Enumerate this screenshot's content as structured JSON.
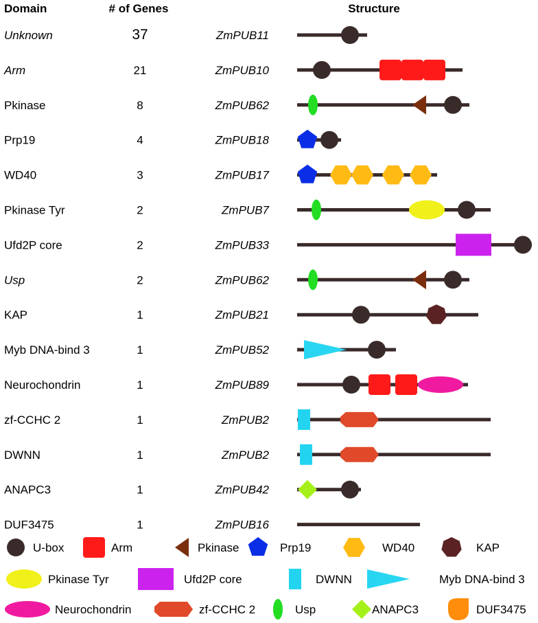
{
  "headers": {
    "domain": "Domain",
    "genes": "# of Genes",
    "structure": "Structure"
  },
  "rows": [
    {
      "domain": "Unknown",
      "italic": true,
      "count": "37",
      "gene": "ZmPUB11",
      "line": [
        433,
        535
      ],
      "shapes": [
        {
          "type": "ubox",
          "x": 510
        }
      ]
    },
    {
      "domain": "Arm",
      "italic": true,
      "count": "21",
      "gene": "ZmPUB10",
      "line": [
        433,
        674
      ],
      "shapes": [
        {
          "type": "ubox",
          "x": 469
        },
        {
          "type": "arm",
          "x": 569
        },
        {
          "type": "arm",
          "x": 601
        },
        {
          "type": "arm",
          "x": 633
        }
      ]
    },
    {
      "domain": "Pkinase",
      "italic": false,
      "count": "8",
      "gene": "ZmPUB62",
      "line": [
        433,
        684
      ],
      "shapes": [
        {
          "type": "usp",
          "x": 456
        },
        {
          "type": "pkinase",
          "x": 612
        },
        {
          "type": "ubox",
          "x": 660
        }
      ]
    },
    {
      "domain": "Prp19",
      "italic": false,
      "count": "4",
      "gene": "ZmPUB18",
      "line": [
        433,
        497
      ],
      "shapes": [
        {
          "type": "prp19",
          "x": 448
        },
        {
          "type": "ubox",
          "x": 480
        }
      ]
    },
    {
      "domain": "WD40",
      "italic": false,
      "count": "3",
      "gene": "ZmPUB17",
      "line": [
        433,
        637
      ],
      "shapes": [
        {
          "type": "prp19",
          "x": 448
        },
        {
          "type": "wd40",
          "x": 497
        },
        {
          "type": "wd40",
          "x": 528
        },
        {
          "type": "wd40",
          "x": 573
        },
        {
          "type": "wd40",
          "x": 613
        }
      ]
    },
    {
      "domain": "Pkinase Tyr",
      "italic": false,
      "count": "2",
      "gene": "ZmPUB7",
      "line": [
        433,
        715
      ],
      "shapes": [
        {
          "type": "usp",
          "x": 461
        },
        {
          "type": "pkinasetyr",
          "x": 622
        },
        {
          "type": "ubox",
          "x": 680
        }
      ]
    },
    {
      "domain": "Ufd2P core",
      "italic": false,
      "count": "2",
      "gene": "ZmPUB33",
      "line": [
        433,
        775
      ],
      "shapes": [
        {
          "type": "ufd2p",
          "x": 690
        },
        {
          "type": "ubox",
          "x": 762
        }
      ]
    },
    {
      "domain": "Usp",
      "italic": true,
      "count": "2",
      "gene": "ZmPUB62",
      "line": [
        433,
        684
      ],
      "shapes": [
        {
          "type": "usp",
          "x": 456
        },
        {
          "type": "pkinase",
          "x": 612
        },
        {
          "type": "ubox",
          "x": 660
        }
      ]
    },
    {
      "domain": "KAP",
      "italic": false,
      "count": "1",
      "gene": "ZmPUB21",
      "line": [
        433,
        697
      ],
      "shapes": [
        {
          "type": "ubox",
          "x": 526
        },
        {
          "type": "kap",
          "x": 636
        }
      ]
    },
    {
      "domain": "Myb DNA-bind 3",
      "italic": false,
      "count": "1",
      "gene": "ZmPUB52",
      "line": [
        433,
        577
      ],
      "shapes": [
        {
          "type": "myb",
          "x": 443
        },
        {
          "type": "ubox",
          "x": 549
        }
      ]
    },
    {
      "domain": "Neurochondrin",
      "italic": false,
      "count": "1",
      "gene": "ZmPUB89",
      "line": [
        433,
        682
      ],
      "shapes": [
        {
          "type": "ubox",
          "x": 512
        },
        {
          "type": "arm",
          "x": 553
        },
        {
          "type": "arm",
          "x": 592
        },
        {
          "type": "neuro",
          "x": 642
        }
      ]
    },
    {
      "domain": "zf-CCHC 2",
      "italic": false,
      "count": "1",
      "gene": "ZmPUB2",
      "line": [
        433,
        715
      ],
      "shapes": [
        {
          "type": "dwnn",
          "x": 443
        },
        {
          "type": "zfcchc",
          "x": 524
        }
      ]
    },
    {
      "domain": "DWNN",
      "italic": false,
      "count": "1",
      "gene": "ZmPUB2",
      "line": [
        433,
        715
      ],
      "shapes": [
        {
          "type": "dwnn",
          "x": 446
        },
        {
          "type": "zfcchc",
          "x": 524
        }
      ]
    },
    {
      "domain": "ANAPC3",
      "italic": false,
      "count": "1",
      "gene": "ZmPUB42",
      "line": [
        433,
        526
      ],
      "shapes": [
        {
          "type": "anapc3",
          "x": 448
        },
        {
          "type": "ubox",
          "x": 510
        }
      ]
    },
    {
      "domain": "DUF3475",
      "italic": false,
      "count": "1",
      "gene": "ZmPUB16",
      "line": [
        433,
        612
      ],
      "shapes": []
    }
  ],
  "legend": [
    {
      "type": "ubox",
      "label": "U-box"
    },
    {
      "type": "arm",
      "label": "Arm"
    },
    {
      "type": "pkinase",
      "label": "Pkinase"
    },
    {
      "type": "prp19",
      "label": "Prp19"
    },
    {
      "type": "wd40",
      "label": "WD40"
    },
    {
      "type": "kap",
      "label": "KAP"
    },
    {
      "type": "pkinasetyr",
      "label": "Pkinase Tyr"
    },
    {
      "type": "ufd2p",
      "label": "Ufd2P core"
    },
    {
      "type": "dwnn",
      "label": "DWNN"
    },
    {
      "type": "myb",
      "label": "Myb DNA-bind 3"
    },
    {
      "type": "neuro",
      "label": "Neurochondrin"
    },
    {
      "type": "zfcchc",
      "label": "zf-CCHC 2"
    },
    {
      "type": "usp",
      "label": "Usp"
    },
    {
      "type": "anapc3",
      "label": "ANAPC3"
    },
    {
      "type": "duf3475",
      "label": "DUF3475"
    }
  ],
  "colors": {
    "line": "#3a2a2a",
    "ubox": "#3a2b2b",
    "arm": "#ff1a1a",
    "pkinase": "#7a2e0e",
    "prp19": "#0a2ee6",
    "wd40": "#ffbb14",
    "kap": "#5a2222",
    "pkinasetyr": "#f0f01a",
    "ufd2p": "#cc22ee",
    "dwnn": "#22d4f0",
    "myb": "#28d6f2",
    "neuro": "#f01aa0",
    "zfcchc": "#e04a2a",
    "usp": "#22dd22",
    "anapc3": "#a6f01a",
    "duf3475": "#ff8c0a"
  }
}
